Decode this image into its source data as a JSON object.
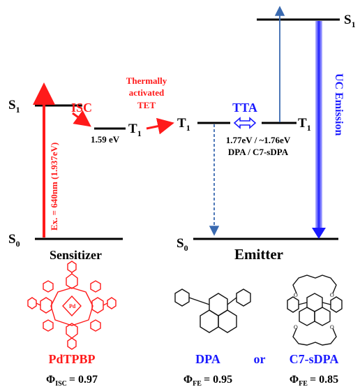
{
  "sensitizer": {
    "s1": "S",
    "s1_sub": "1",
    "s0": "S",
    "s0_sub": "0",
    "t1": "T",
    "t1_sub": "1",
    "t1_energy": "1.59 eV",
    "isc": "ISC",
    "excitation": "Ex. = 640nm (1.937eV)",
    "title": "Sensitizer"
  },
  "tet": {
    "line1": "Thermally",
    "line2": "activated",
    "line3": "TET"
  },
  "emitter": {
    "t1_left": "T",
    "t1_left_sub": "1",
    "t1_right": "T",
    "t1_right_sub": "1",
    "s1": "S",
    "s1_sub": "1",
    "s0": "S",
    "s0_sub": "0",
    "tta": "TTA",
    "energy": "1.77eV / ~1.76eV",
    "names": "DPA / C7-sDPA",
    "uc": "UC Emission",
    "title": "Emitter"
  },
  "molecules": {
    "pdtpbp": {
      "name": "PdTPBP",
      "phi_symbol": "Φ",
      "phi_sub": "ISC",
      "phi_value": "= 0.97",
      "metal": "Pd",
      "n": "N"
    },
    "dpa": {
      "name": "DPA",
      "phi_symbol": "Φ",
      "phi_sub": "FE",
      "phi_value": "= 0.95"
    },
    "or": "or",
    "c7sdpa": {
      "name": "C7-sDPA",
      "phi_symbol": "Φ",
      "phi_sub": "FE",
      "phi_value": "= 0.85",
      "o": "O"
    }
  },
  "colors": {
    "red": "#ff1a1a",
    "blue": "#1a1aff",
    "steel": "#3a6ab0",
    "black": "#000000"
  }
}
